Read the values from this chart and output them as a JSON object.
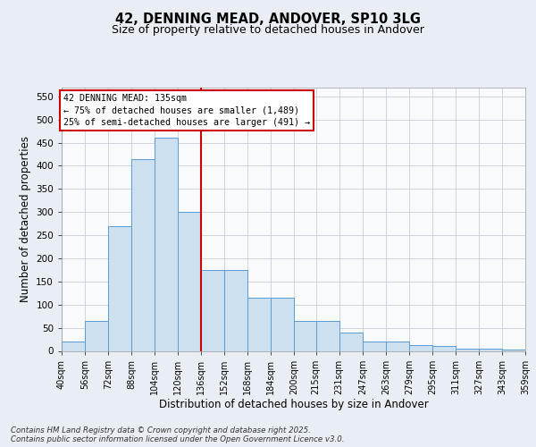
{
  "title1": "42, DENNING MEAD, ANDOVER, SP10 3LG",
  "title2": "Size of property relative to detached houses in Andover",
  "xlabel": "Distribution of detached houses by size in Andover",
  "ylabel": "Number of detached properties",
  "bin_edges": [
    40,
    56,
    72,
    88,
    104,
    120,
    136,
    152,
    168,
    184,
    200,
    215,
    231,
    247,
    263,
    279,
    295,
    311,
    327,
    343,
    359
  ],
  "bin_labels": [
    "40sqm",
    "56sqm",
    "72sqm",
    "88sqm",
    "104sqm",
    "120sqm",
    "136sqm",
    "152sqm",
    "168sqm",
    "184sqm",
    "200sqm",
    "215sqm",
    "231sqm",
    "247sqm",
    "263sqm",
    "279sqm",
    "295sqm",
    "311sqm",
    "327sqm",
    "343sqm",
    "359sqm"
  ],
  "bar_heights": [
    20,
    65,
    270,
    415,
    460,
    300,
    175,
    175,
    115,
    115,
    65,
    65,
    40,
    20,
    20,
    13,
    10,
    5,
    5,
    3
  ],
  "bar_color": "#cce0f0",
  "bar_edge_color": "#5b9bd5",
  "vline_x": 136,
  "vline_color": "#cc0000",
  "ann_line1": "42 DENNING MEAD: 135sqm",
  "ann_line2": "← 75% of detached houses are smaller (1,489)",
  "ann_line3": "25% of semi-detached houses are larger (491) →",
  "ylim_max": 570,
  "yticks": [
    0,
    50,
    100,
    150,
    200,
    250,
    300,
    350,
    400,
    450,
    500,
    550
  ],
  "fig_bg_color": "#e8eef4",
  "plot_bg_color": "#f8fafc",
  "grid_color": "#c8d0d8",
  "footer_line1": "Contains HM Land Registry data © Crown copyright and database right 2025.",
  "footer_line2": "Contains public sector information licensed under the Open Government Licence v3.0."
}
